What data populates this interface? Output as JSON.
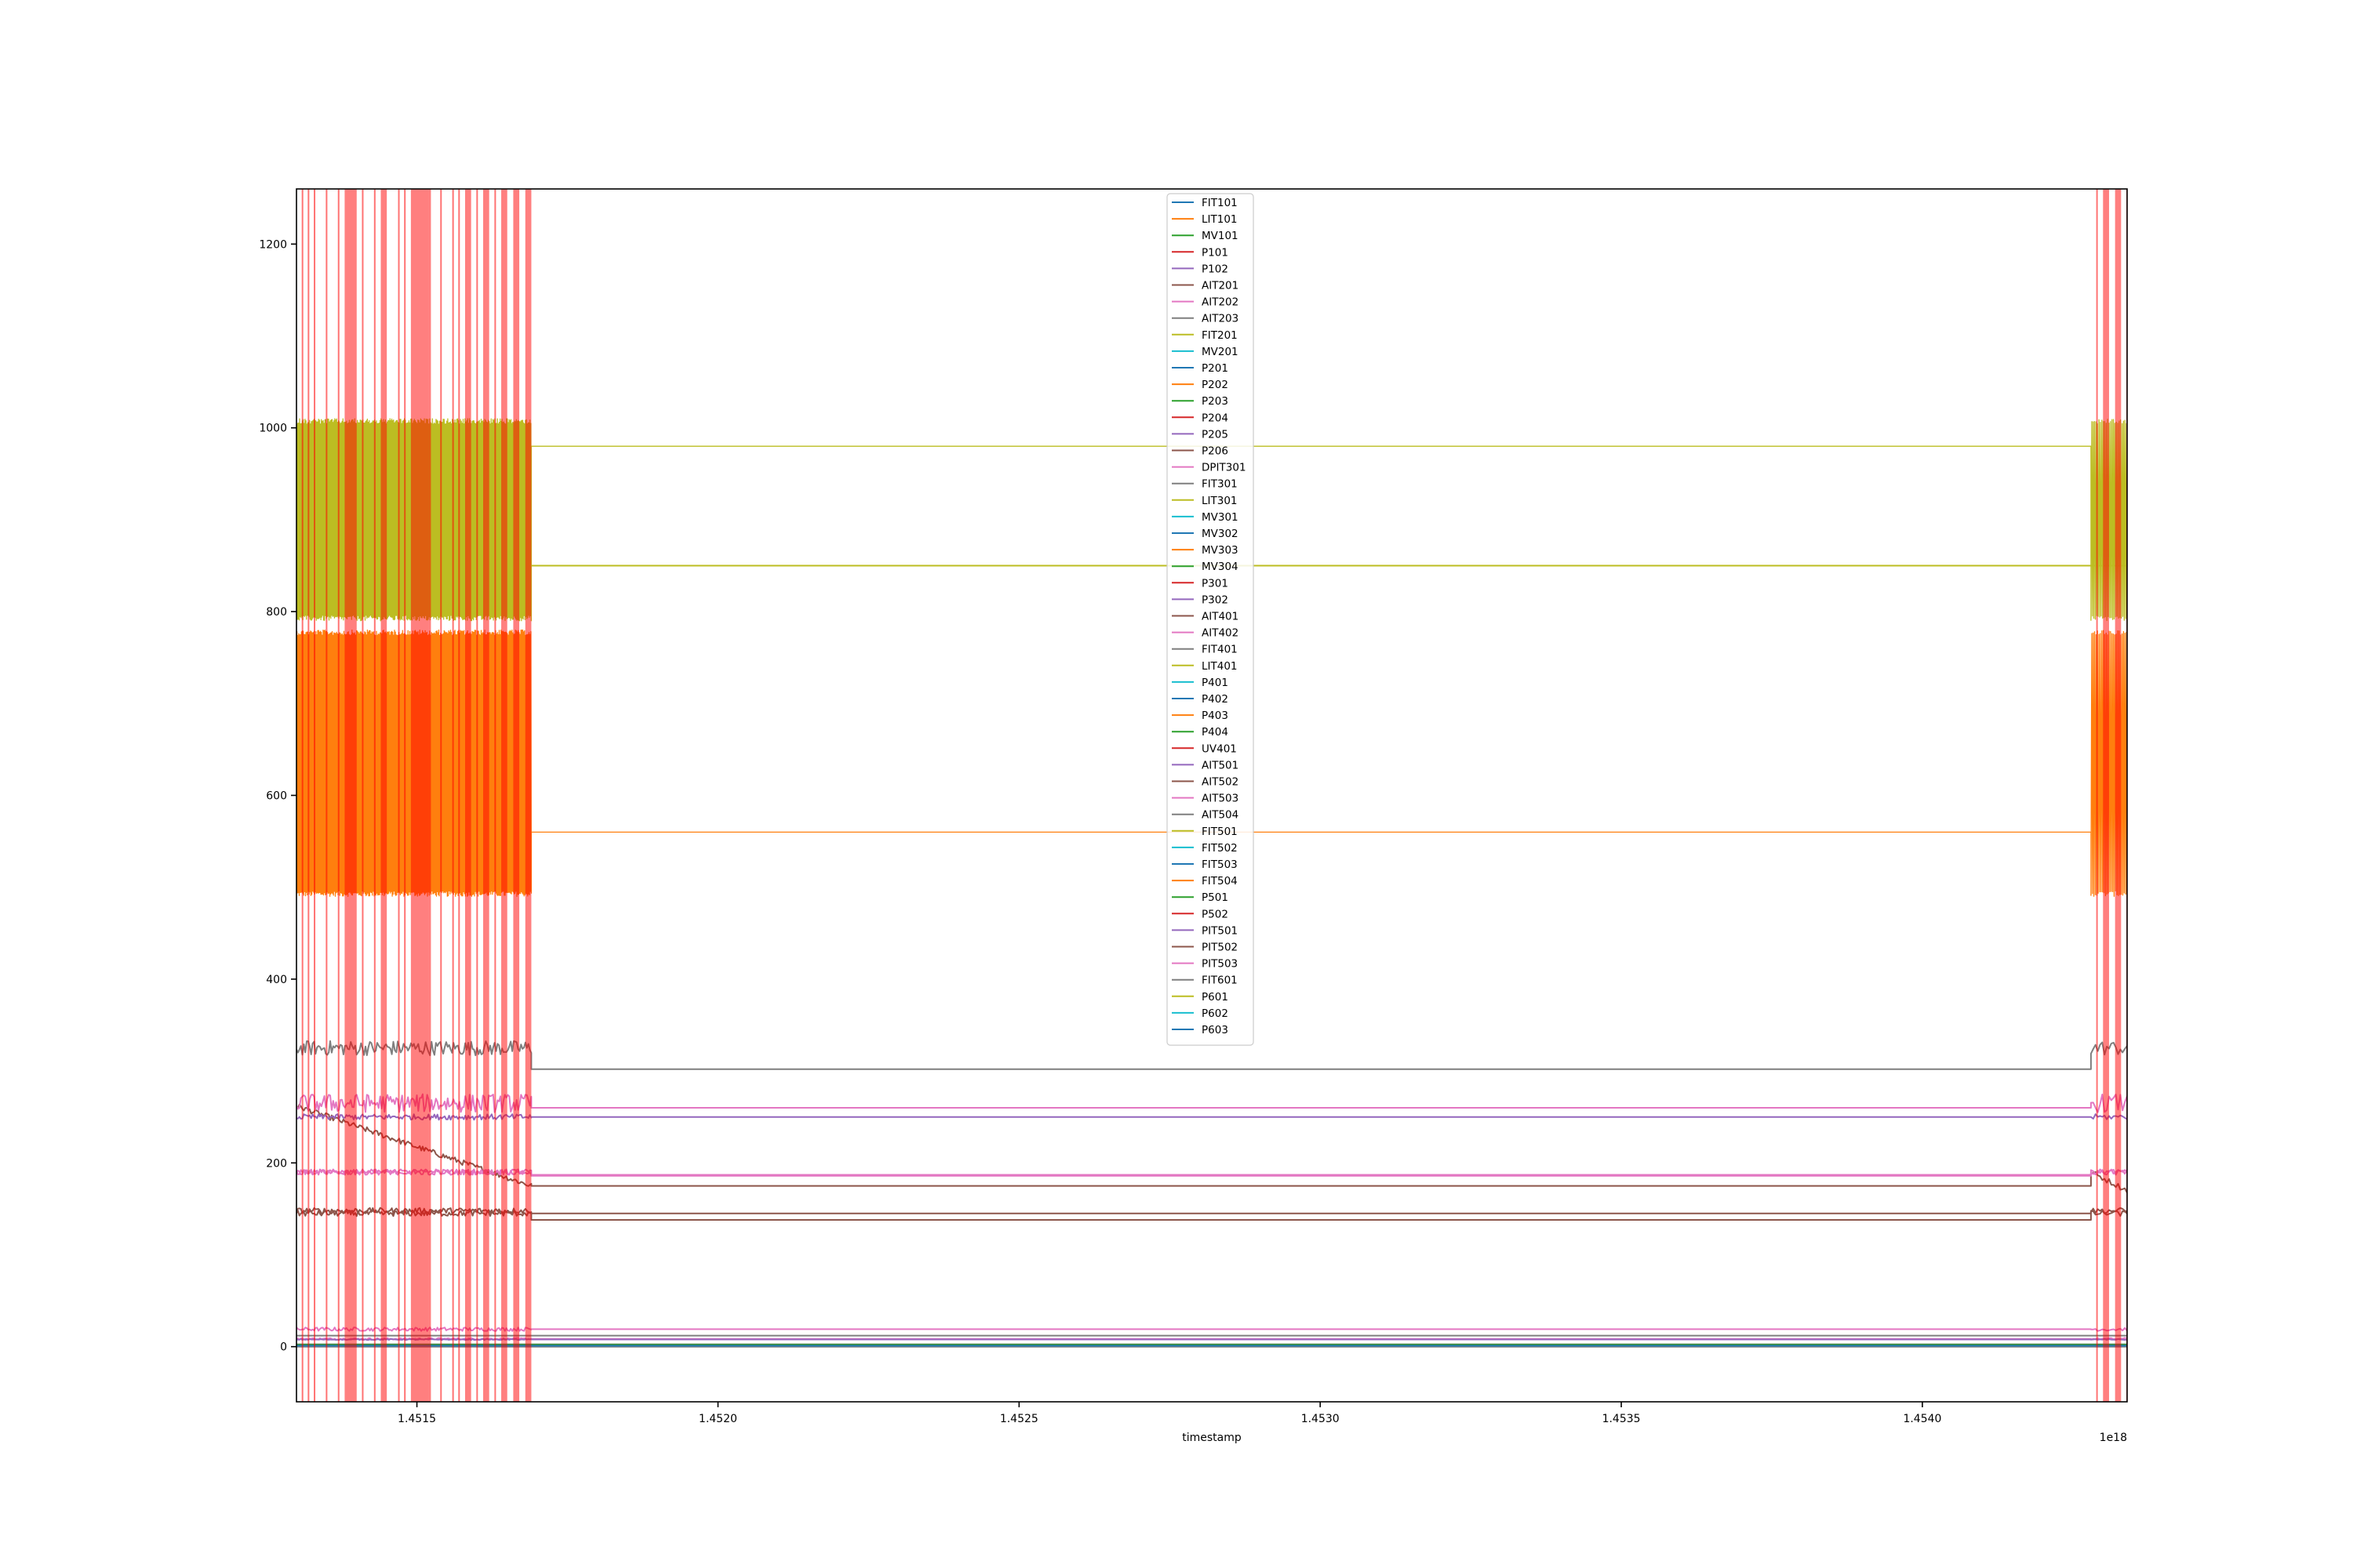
{
  "chart_data": {
    "type": "line",
    "title": "",
    "xlabel": "timestamp",
    "ylabel": "",
    "x_offset_label": "1e18",
    "xlim": [
      1.4513,
      1.45434
    ],
    "ylim": [
      -60,
      1260
    ],
    "x_ticks": [
      {
        "value": 1.4515,
        "label": "1.4515"
      },
      {
        "value": 1.452,
        "label": "1.4520"
      },
      {
        "value": 1.4525,
        "label": "1.4525"
      },
      {
        "value": 1.453,
        "label": "1.4530"
      },
      {
        "value": 1.4535,
        "label": "1.4535"
      },
      {
        "value": 1.454,
        "label": "1.4540"
      }
    ],
    "y_ticks": [
      {
        "value": 0,
        "label": "0"
      },
      {
        "value": 200,
        "label": "200"
      },
      {
        "value": 400,
        "label": "400"
      },
      {
        "value": 600,
        "label": "600"
      },
      {
        "value": 800,
        "label": "800"
      },
      {
        "value": 1000,
        "label": "1000"
      },
      {
        "value": 1200,
        "label": "1200"
      }
    ],
    "grid": false,
    "legend_position": "top-center",
    "segment_breaks": [
      [
        1.45169,
        1.45428
      ]
    ],
    "anomaly_color": "#ff0000",
    "anomaly_spans": [
      [
        1.45138,
        1.4514
      ],
      [
        1.45144,
        1.45145
      ],
      [
        1.45149,
        1.45152
      ],
      [
        1.45152,
        1.45152
      ],
      [
        1.45158,
        1.45159
      ],
      [
        1.45161,
        1.45162
      ],
      [
        1.45164,
        1.45165
      ],
      [
        1.45166,
        1.45167
      ],
      [
        1.45168,
        1.45169
      ],
      [
        1.4543,
        1.45431
      ],
      [
        1.45432,
        1.45433
      ]
    ],
    "anomaly_lines": [
      1.45131,
      1.45132,
      1.45133,
      1.45135,
      1.45137,
      1.45141,
      1.45143,
      1.45147,
      1.45148,
      1.45154,
      1.45156,
      1.45157,
      1.4516,
      1.45163,
      1.45429,
      1.45434
    ],
    "series": [
      {
        "name": "FIT101",
        "color": "#1f77b4",
        "style": "flat",
        "level": 2.5
      },
      {
        "name": "LIT101",
        "color": "#ff7f0e",
        "style": "oscillate",
        "low": 490,
        "high": 780,
        "level": 560
      },
      {
        "name": " MV101",
        "color": "#2ca02c",
        "style": "flat",
        "level": 2
      },
      {
        "name": "P101",
        "color": "#d62728",
        "style": "flat",
        "level": 2
      },
      {
        "name": "P102",
        "color": "#9467bd",
        "style": "flat",
        "level": 1
      },
      {
        "name": " AIT201",
        "color": "#8c564b",
        "style": "decay",
        "start": 262,
        "end": 175,
        "level": 175
      },
      {
        "name": "AIT202",
        "color": "#e377c2",
        "style": "noisy",
        "base": 8.5,
        "amp": 1,
        "level": 8.5
      },
      {
        "name": "AIT203",
        "color": "#7f7f7f",
        "style": "noisy",
        "base": 325,
        "amp": 8,
        "level": 302
      },
      {
        "name": "FIT201",
        "color": "#bcbd22",
        "style": "flat",
        "level": 2.4
      },
      {
        "name": " MV201",
        "color": "#17becf",
        "style": "flat",
        "level": 2
      },
      {
        "name": " P201",
        "color": "#1f77b4",
        "style": "flat",
        "level": 1
      },
      {
        "name": " P202",
        "color": "#ff7f0e",
        "style": "flat",
        "level": 1
      },
      {
        "name": "P203",
        "color": "#2ca02c",
        "style": "flat",
        "level": 2
      },
      {
        "name": " P204",
        "color": "#d62728",
        "style": "flat",
        "level": 1
      },
      {
        "name": "P205",
        "color": "#9467bd",
        "style": "flat",
        "level": 2
      },
      {
        "name": "P206",
        "color": "#8c564b",
        "style": "flat",
        "level": 1
      },
      {
        "name": "DPIT301",
        "color": "#e377c2",
        "style": "noisy",
        "base": 19,
        "amp": 2,
        "level": 19
      },
      {
        "name": "FIT301",
        "color": "#7f7f7f",
        "style": "flat",
        "level": 2.2
      },
      {
        "name": "LIT301",
        "color": "#bcbd22",
        "style": "oscillate",
        "low": 790,
        "high": 1010,
        "level": 980
      },
      {
        "name": "MV301",
        "color": "#17becf",
        "style": "flat",
        "level": 1
      },
      {
        "name": "MV302",
        "color": "#1f77b4",
        "style": "flat",
        "level": 2
      },
      {
        "name": " MV303",
        "color": "#ff7f0e",
        "style": "flat",
        "level": 1
      },
      {
        "name": "MV304",
        "color": "#2ca02c",
        "style": "flat",
        "level": 1
      },
      {
        "name": "P301",
        "color": "#d62728",
        "style": "flat",
        "level": 1
      },
      {
        "name": "P302",
        "color": "#9467bd",
        "style": "flat",
        "level": 2
      },
      {
        "name": "AIT401",
        "color": "#8c564b",
        "style": "noisy",
        "base": 148,
        "amp": 3,
        "level": 138
      },
      {
        "name": "AIT402",
        "color": "#e377c2",
        "style": "noisy",
        "base": 190,
        "amp": 3,
        "level": 186
      },
      {
        "name": "FIT401",
        "color": "#7f7f7f",
        "style": "flat",
        "level": 1.7
      },
      {
        "name": "LIT401",
        "color": "#bcbd22",
        "style": "flat",
        "level": 850
      },
      {
        "name": "P401",
        "color": "#17becf",
        "style": "flat",
        "level": 1
      },
      {
        "name": "P402",
        "color": "#1f77b4",
        "style": "flat",
        "level": 2
      },
      {
        "name": "P403",
        "color": "#ff7f0e",
        "style": "flat",
        "level": 1
      },
      {
        "name": "P404",
        "color": "#2ca02c",
        "style": "flat",
        "level": 1
      },
      {
        "name": "UV401",
        "color": "#d62728",
        "style": "flat",
        "level": 2
      },
      {
        "name": "AIT501",
        "color": "#9467bd",
        "style": "noisy",
        "base": 7.8,
        "amp": 0.5,
        "level": 7.8
      },
      {
        "name": "AIT502",
        "color": "#8c564b",
        "style": "noisy",
        "base": 145,
        "amp": 3,
        "level": 145
      },
      {
        "name": "AIT503",
        "color": "#e377c2",
        "style": "noisy",
        "base": 265,
        "amp": 10,
        "level": 260
      },
      {
        "name": "AIT504",
        "color": "#7f7f7f",
        "style": "flat",
        "level": 12
      },
      {
        "name": "FIT501",
        "color": "#bcbd22",
        "style": "flat",
        "level": 1.7
      },
      {
        "name": "FIT502",
        "color": "#17becf",
        "style": "flat",
        "level": 1.3
      },
      {
        "name": "FIT503",
        "color": "#1f77b4",
        "style": "flat",
        "level": 0.7
      },
      {
        "name": "FIT504",
        "color": "#ff7f0e",
        "style": "flat",
        "level": 0.3
      },
      {
        "name": "P501",
        "color": "#2ca02c",
        "style": "flat",
        "level": 2
      },
      {
        "name": "P502",
        "color": "#d62728",
        "style": "flat",
        "level": 1
      },
      {
        "name": "PIT501",
        "color": "#9467bd",
        "style": "noisy",
        "base": 250,
        "amp": 3,
        "level": 250
      },
      {
        "name": "PIT502",
        "color": "#8c564b",
        "style": "flat",
        "level": 0.8
      },
      {
        "name": "PIT503",
        "color": "#e377c2",
        "style": "noisy",
        "base": 190,
        "amp": 3,
        "level": 187
      },
      {
        "name": "FIT601",
        "color": "#7f7f7f",
        "style": "flat",
        "level": 0
      },
      {
        "name": "P601",
        "color": "#bcbd22",
        "style": "flat",
        "level": 1
      },
      {
        "name": "P602",
        "color": "#17becf",
        "style": "flat",
        "level": 1
      },
      {
        "name": "P603",
        "color": "#1f77b4",
        "style": "flat",
        "level": 1
      }
    ]
  }
}
